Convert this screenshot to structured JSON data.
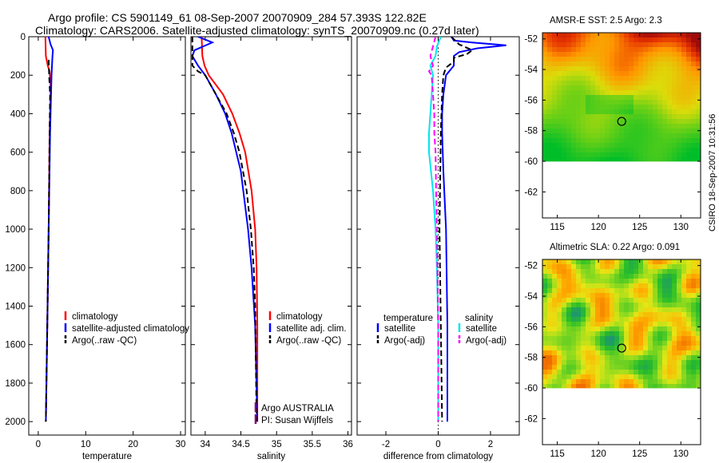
{
  "titles": {
    "line1": "Argo profile: CS 5901149_61 08-Sep-2007 20070909_284 57.393S 122.82E",
    "line2": "Climatology: CARS2006. Satellite-adjusted climatology: synTS_20070909.nc (0.27d later)"
  },
  "map_titles": {
    "sst": "AMSR-E SST: 2.5 Argo: 2.3",
    "sla": "Altimetric SLA: 0.22 Argo: 0.091"
  },
  "watermark": "CSIRO 18-Sep-2007 10:31:56",
  "colors": {
    "climatology": "#ff0000",
    "satellite": "#0000ff",
    "argo": "#000000",
    "cyan": "#00e5ee",
    "magenta": "#ff00ff"
  },
  "chart_data": [
    {
      "type": "line",
      "xlabel": "temperature",
      "ylabel": "",
      "xlim": [
        -2,
        31
      ],
      "ylim": [
        2070,
        0
      ],
      "y_reversed": true,
      "xticks": [
        0,
        10,
        20,
        30
      ],
      "xtick_labels": [
        "0",
        "10",
        "20",
        "30"
      ],
      "yticks": [
        0,
        200,
        400,
        600,
        800,
        1000,
        1200,
        1400,
        1600,
        1800,
        2000
      ],
      "ytick_labels": [
        "0",
        "200",
        "400",
        "600",
        "800",
        "1000",
        "1200",
        "1400",
        "1600",
        "1800",
        "2000"
      ],
      "legend": {
        "position": "bottom-right",
        "entries": [
          "climatology",
          "satellite-adjusted climatology",
          "Argo(..raw -QC)"
        ]
      },
      "series": [
        {
          "name": "climatology",
          "color": "#ff0000",
          "dash": "solid",
          "depth": [
            0,
            100,
            150,
            180,
            250,
            300,
            500,
            1000,
            1500,
            2000
          ],
          "values": [
            1.5,
            1.6,
            2.0,
            2.4,
            2.6,
            2.6,
            2.4,
            2.2,
            1.9,
            1.6
          ]
        },
        {
          "name": "satellite-adjusted climatology",
          "color": "#0000ff",
          "dash": "solid",
          "depth": [
            0,
            40,
            70,
            100,
            150,
            200,
            300,
            500,
            1000,
            1500,
            2000
          ],
          "values": [
            2.2,
            2.6,
            3.1,
            3.0,
            2.9,
            2.8,
            2.7,
            2.5,
            2.2,
            1.9,
            1.6
          ]
        },
        {
          "name": "Argo(..raw -QC)",
          "color": "#000000",
          "dash": "dash",
          "depth": [
            120,
            200,
            300,
            500,
            1000,
            1500,
            2000
          ],
          "values": [
            2.2,
            2.3,
            2.5,
            2.4,
            2.2,
            1.9,
            1.6
          ]
        }
      ]
    },
    {
      "type": "line",
      "xlabel": "salinity",
      "ylabel": "",
      "xlim": [
        33.8,
        36.05
      ],
      "ylim": [
        2070,
        0
      ],
      "y_reversed": true,
      "xticks": [
        34,
        34.5,
        35,
        35.5,
        36
      ],
      "xtick_labels": [
        "34",
        "34.5",
        "35",
        "35.5",
        "36"
      ],
      "legend": {
        "position": "bottom-right",
        "entries": [
          "climatology",
          "satellite adj. clim.",
          "Argo(..raw -QC)"
        ]
      },
      "annotations": [
        "Argo AUSTRALIA",
        "PI: Susan Wijffels"
      ],
      "series": [
        {
          "name": "climatology",
          "color": "#ff0000",
          "dash": "solid",
          "depth": [
            0,
            100,
            150,
            200,
            300,
            400,
            500,
            600,
            800,
            1000,
            1200,
            1500,
            2000
          ],
          "values": [
            33.95,
            33.96,
            33.99,
            34.05,
            34.25,
            34.38,
            34.48,
            34.56,
            34.65,
            34.7,
            34.72,
            34.73,
            34.73
          ]
        },
        {
          "name": "satellite adj. clim.",
          "color": "#0000ff",
          "dash": "solid",
          "depth": [
            0,
            30,
            70,
            100,
            120,
            150,
            200,
            300,
            400,
            500,
            700,
            1000,
            1200,
            1500,
            2000
          ],
          "values": [
            33.9,
            34.1,
            33.85,
            33.82,
            33.85,
            33.9,
            34.0,
            34.15,
            34.28,
            34.37,
            34.5,
            34.6,
            34.65,
            34.7,
            34.73
          ]
        },
        {
          "name": "Argo(..raw -QC)",
          "color": "#000000",
          "dash": "dash",
          "depth": [
            0,
            150,
            180,
            200,
            300,
            400,
            500,
            600,
            800,
            1000,
            1200,
            1400,
            2000
          ],
          "values": [
            33.82,
            33.82,
            33.9,
            34.0,
            34.15,
            34.3,
            34.4,
            34.48,
            34.58,
            34.64,
            34.68,
            34.7,
            34.72
          ]
        }
      ]
    },
    {
      "type": "line",
      "xlabel": "difference from climatology",
      "ylabel": "",
      "xlim": [
        -3.1,
        3.1
      ],
      "ylim": [
        2070,
        0
      ],
      "y_reversed": true,
      "xticks": [
        -2,
        0,
        2
      ],
      "xtick_labels": [
        "-2",
        "0",
        "2"
      ],
      "legend_left": {
        "header": "temperature",
        "entries": [
          "satellite",
          "Argo(-adj)"
        ]
      },
      "legend_right": {
        "header": "salinity",
        "entries": [
          "satellite",
          "Argo(-adj)"
        ]
      },
      "series": [
        {
          "name": "temperature satellite",
          "color": "#0000ff",
          "dash": "solid",
          "depth": [
            0,
            20,
            30,
            45,
            60,
            80,
            100,
            130,
            150,
            200,
            300,
            400,
            500,
            700,
            1000,
            1500,
            2000
          ],
          "values": [
            0.5,
            0.6,
            1.3,
            2.6,
            1.5,
            0.8,
            0.6,
            0.6,
            0.6,
            0.3,
            0.2,
            0.15,
            0.15,
            0.2,
            0.3,
            0.35,
            0.35
          ]
        },
        {
          "name": "temperature Argo(-adj)",
          "color": "#000000",
          "dash": "dash",
          "depth": [
            0,
            40,
            70,
            90,
            110,
            130,
            160,
            200,
            300,
            500,
            1000,
            1500,
            2000
          ],
          "values": [
            0.5,
            0.8,
            1.3,
            1.1,
            0.6,
            0.6,
            0.3,
            0.2,
            0.15,
            0.1,
            0.05,
            0.1,
            0.15
          ]
        },
        {
          "name": "salinity satellite",
          "color": "#00e5ee",
          "dash": "solid",
          "depth": [
            0,
            50,
            100,
            150,
            200,
            400,
            500,
            600,
            800,
            1000,
            1200,
            1500,
            2000
          ],
          "values": [
            0.1,
            -0.05,
            -0.1,
            -0.3,
            -0.2,
            -0.3,
            -0.35,
            -0.35,
            -0.2,
            -0.1,
            -0.05,
            0.0,
            0.0
          ]
        },
        {
          "name": "salinity Argo(-adj)",
          "color": "#ff00ff",
          "dash": "dash",
          "depth": [
            0,
            50,
            100,
            150,
            180,
            200,
            300,
            400,
            500,
            600,
            800,
            1000,
            1200,
            1500,
            2000
          ],
          "values": [
            -0.1,
            -0.2,
            -0.3,
            -0.2,
            -0.35,
            -0.25,
            -0.2,
            -0.15,
            -0.15,
            -0.1,
            -0.08,
            -0.05,
            -0.03,
            0.0,
            0.0
          ]
        }
      ]
    },
    {
      "type": "heatmap",
      "title": "AMSR-E SST: 2.5 Argo: 2.3",
      "xlim": [
        113.2,
        132.4
      ],
      "ylim": [
        -63.7,
        -51.6
      ],
      "xticks": [
        115,
        120,
        125,
        130
      ],
      "xtick_labels": [
        "115",
        "120",
        "125",
        "130"
      ],
      "yticks": [
        -52,
        -54,
        -56,
        -58,
        -60,
        -62
      ],
      "ytick_labels": [
        "-52",
        "-54",
        "-56",
        "-58",
        "-60",
        "-62"
      ],
      "data_extent_lat": [
        -60,
        -51.6
      ],
      "argo_marker": [
        122.82,
        -57.393
      ]
    },
    {
      "type": "heatmap",
      "title": "Altimetric SLA: 0.22 Argo: 0.091",
      "xlim": [
        113.2,
        132.4
      ],
      "ylim": [
        -63.7,
        -51.6
      ],
      "xticks": [
        115,
        120,
        125,
        130
      ],
      "xtick_labels": [
        "115",
        "120",
        "125",
        "130"
      ],
      "yticks": [
        -52,
        -54,
        -56,
        -58,
        -60,
        -62
      ],
      "ytick_labels": [
        "-52",
        "-54",
        "-56",
        "-58",
        "-60",
        "-62"
      ],
      "data_extent_lat": [
        -60,
        -51.6
      ],
      "argo_marker": [
        122.82,
        -57.393
      ]
    }
  ]
}
